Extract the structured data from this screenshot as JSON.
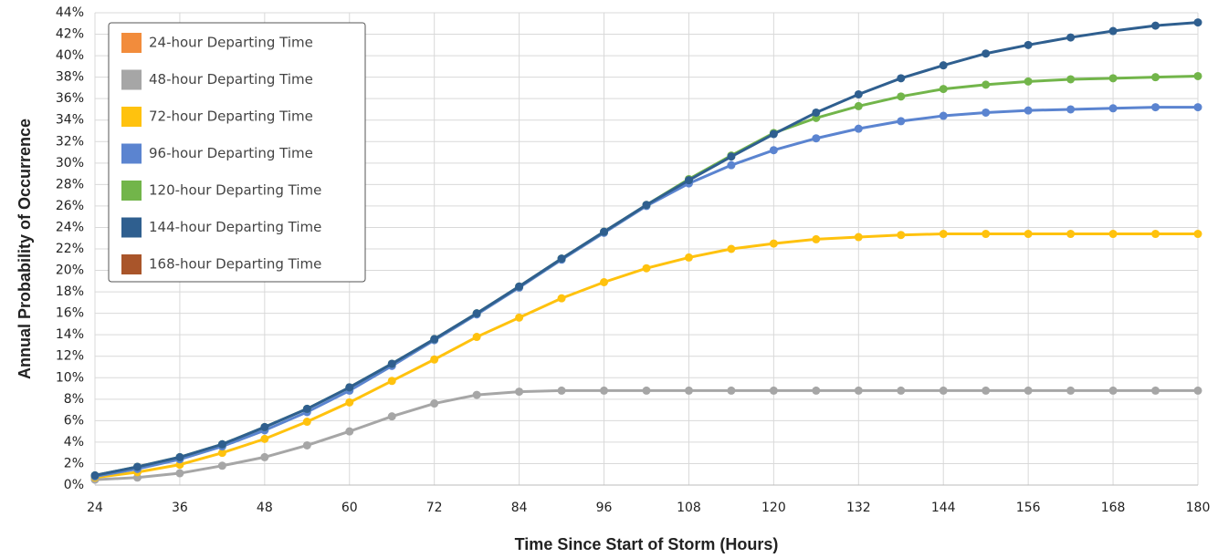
{
  "chart_data": {
    "type": "line",
    "xlabel": "Time Since Start of Storm (Hours)",
    "ylabel": "Annual Probability  of Occurrence",
    "x": [
      24,
      30,
      36,
      42,
      48,
      54,
      60,
      66,
      72,
      78,
      84,
      90,
      96,
      102,
      108,
      114,
      120,
      126,
      132,
      138,
      144,
      150,
      156,
      162,
      168,
      174,
      180
    ],
    "xlim": [
      24,
      180
    ],
    "xticks": [
      24,
      36,
      48,
      60,
      72,
      84,
      96,
      108,
      120,
      132,
      144,
      156,
      168,
      180
    ],
    "ylim": [
      0,
      44
    ],
    "yticks": [
      {
        "value": 0,
        "label": "0%"
      },
      {
        "value": 2,
        "label": "2%"
      },
      {
        "value": 4,
        "label": "4%"
      },
      {
        "value": 6,
        "label": "6%"
      },
      {
        "value": 8,
        "label": "8%"
      },
      {
        "value": 10,
        "label": "10%"
      },
      {
        "value": 12,
        "label": "12%"
      },
      {
        "value": 14,
        "label": "14%"
      },
      {
        "value": 16,
        "label": "16%"
      },
      {
        "value": 18,
        "label": "18%"
      },
      {
        "value": 20,
        "label": "20%"
      },
      {
        "value": 22,
        "label": "22%"
      },
      {
        "value": 24,
        "label": "24%"
      },
      {
        "value": 26,
        "label": "26%"
      },
      {
        "value": 28,
        "label": "28%"
      },
      {
        "value": 30,
        "label": "30%"
      },
      {
        "value": 32,
        "label": "32%"
      },
      {
        "value": 34,
        "label": "34%"
      },
      {
        "value": 36,
        "label": "36%"
      },
      {
        "value": 38,
        "label": "38%"
      },
      {
        "value": 40,
        "label": "40%"
      },
      {
        "value": 42,
        "label": "42%"
      },
      {
        "value": 44,
        "label": "44%"
      }
    ],
    "grid": true,
    "legend": "upper left",
    "series": [
      {
        "name": "24-hour Departing Time",
        "color": "#f28c3c",
        "values": [
          null,
          null,
          null,
          null,
          null,
          null,
          null,
          null,
          null,
          null,
          null,
          null,
          null,
          null,
          null,
          null,
          null,
          null,
          null,
          null,
          null,
          null,
          null,
          null,
          null,
          null,
          null
        ]
      },
      {
        "name": "48-hour Departing Time",
        "color": "#a6a6a6",
        "values": [
          0.5,
          0.7,
          1.1,
          1.8,
          2.6,
          3.7,
          5.0,
          6.4,
          7.6,
          8.4,
          8.7,
          8.8,
          8.8,
          8.8,
          8.8,
          8.8,
          8.8,
          8.8,
          8.8,
          8.8,
          8.8,
          8.8,
          8.8,
          8.8,
          8.8,
          8.8,
          8.8
        ]
      },
      {
        "name": "72-hour Departing Time",
        "color": "#ffc20e",
        "values": [
          0.7,
          1.2,
          1.9,
          3.0,
          4.3,
          5.9,
          7.7,
          9.7,
          11.7,
          13.8,
          15.6,
          17.4,
          18.9,
          20.2,
          21.2,
          22.0,
          22.5,
          22.9,
          23.1,
          23.3,
          23.4,
          23.4,
          23.4,
          23.4,
          23.4,
          23.4,
          23.4
        ]
      },
      {
        "name": "96-hour Departing Time",
        "color": "#5b84d0",
        "values": [
          0.8,
          1.5,
          2.4,
          3.6,
          5.1,
          6.8,
          8.8,
          11.1,
          13.5,
          15.9,
          18.4,
          21.0,
          23.5,
          26.0,
          28.1,
          29.8,
          31.2,
          32.3,
          33.2,
          33.9,
          34.4,
          34.7,
          34.9,
          35.0,
          35.1,
          35.2,
          35.2
        ]
      },
      {
        "name": "120-hour Departing Time",
        "color": "#72b54a",
        "values": [
          0.9,
          1.7,
          2.6,
          3.8,
          5.4,
          7.1,
          9.1,
          11.3,
          13.6,
          16.0,
          18.5,
          21.1,
          23.6,
          26.1,
          28.5,
          30.7,
          32.8,
          34.2,
          35.3,
          36.2,
          36.9,
          37.3,
          37.6,
          37.8,
          37.9,
          38.0,
          38.1
        ]
      },
      {
        "name": "144-hour Departing Time",
        "color": "#2f5f8f",
        "values": [
          0.9,
          1.7,
          2.6,
          3.8,
          5.4,
          7.1,
          9.1,
          11.3,
          13.6,
          16.0,
          18.5,
          21.1,
          23.6,
          26.1,
          28.4,
          30.6,
          32.7,
          34.7,
          36.4,
          37.9,
          39.1,
          40.2,
          41.0,
          41.7,
          42.3,
          42.8,
          43.1
        ]
      },
      {
        "name": "168-hour Departing Time",
        "color": "#a9552a",
        "values": [
          null,
          null,
          null,
          null,
          null,
          null,
          null,
          null,
          null,
          null,
          null,
          null,
          null,
          null,
          null,
          null,
          null,
          null,
          null,
          null,
          null,
          null,
          null,
          null,
          null,
          null,
          null
        ]
      }
    ]
  }
}
